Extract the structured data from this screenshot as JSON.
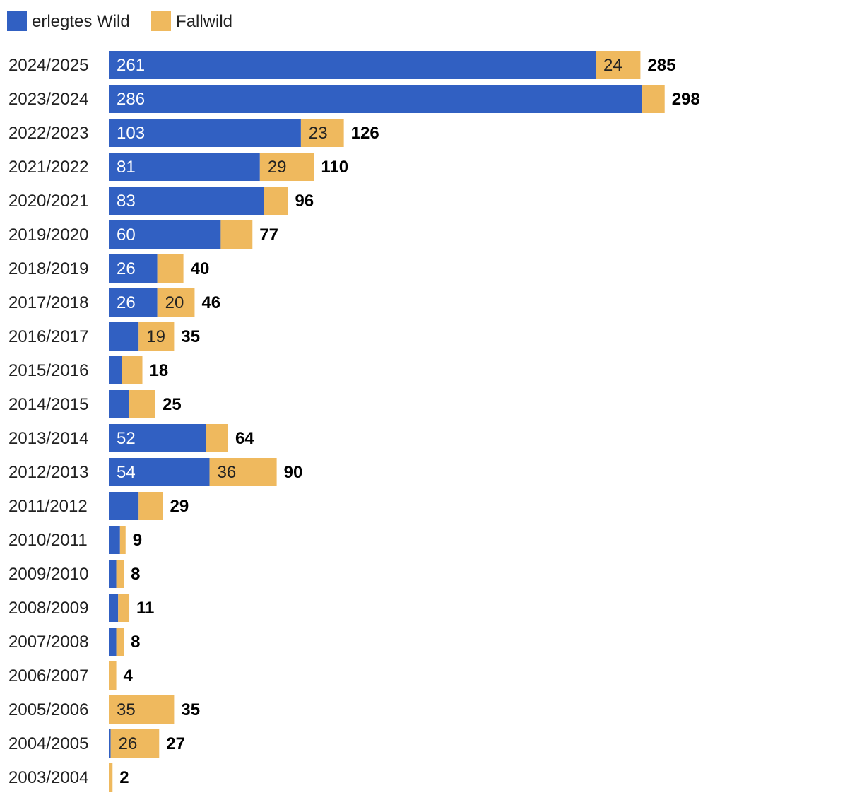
{
  "chart_data": {
    "type": "bar",
    "orientation": "horizontal",
    "stacked": true,
    "legend_position": "top-left",
    "categories": [
      "2024/2025",
      "2023/2024",
      "2022/2023",
      "2021/2022",
      "2020/2021",
      "2019/2020",
      "2018/2019",
      "2017/2018",
      "2016/2017",
      "2015/2016",
      "2014/2015",
      "2013/2014",
      "2012/2013",
      "2011/2012",
      "2010/2011",
      "2009/2010",
      "2008/2009",
      "2007/2008",
      "2006/2007",
      "2005/2006",
      "2004/2005",
      "2003/2004"
    ],
    "series": [
      {
        "name": "erlegtes Wild",
        "color": "#3160c2",
        "label_color": "#ffffff",
        "values": [
          261,
          286,
          103,
          81,
          83,
          60,
          26,
          26,
          16,
          7,
          11,
          52,
          54,
          16,
          6,
          4,
          5,
          4,
          0,
          0,
          1,
          0
        ],
        "labels": [
          "261",
          "286",
          "103",
          "81",
          "83",
          "60",
          "26",
          "26",
          "",
          "",
          "",
          "52",
          "54",
          "",
          "",
          "",
          "",
          "",
          "",
          "",
          "",
          ""
        ]
      },
      {
        "name": "Fallwild",
        "color": "#efb95e",
        "label_color": "#222222",
        "values": [
          24,
          12,
          23,
          29,
          13,
          17,
          14,
          20,
          19,
          11,
          14,
          12,
          36,
          13,
          3,
          4,
          6,
          4,
          4,
          35,
          26,
          2
        ],
        "labels": [
          "24",
          "",
          "23",
          "29",
          "",
          "",
          "",
          "20",
          "19",
          "",
          "",
          "",
          "36",
          "",
          "",
          "",
          "",
          "",
          "",
          "35",
          "26",
          ""
        ]
      }
    ],
    "totals": [
      "285",
      "298",
      "126",
      "110",
      "96",
      "77",
      "40",
      "46",
      "35",
      "18",
      "25",
      "64",
      "90",
      "29",
      "9",
      "8",
      "11",
      "8",
      "4",
      "35",
      "27",
      "2"
    ],
    "xlim": [
      0,
      300
    ]
  }
}
